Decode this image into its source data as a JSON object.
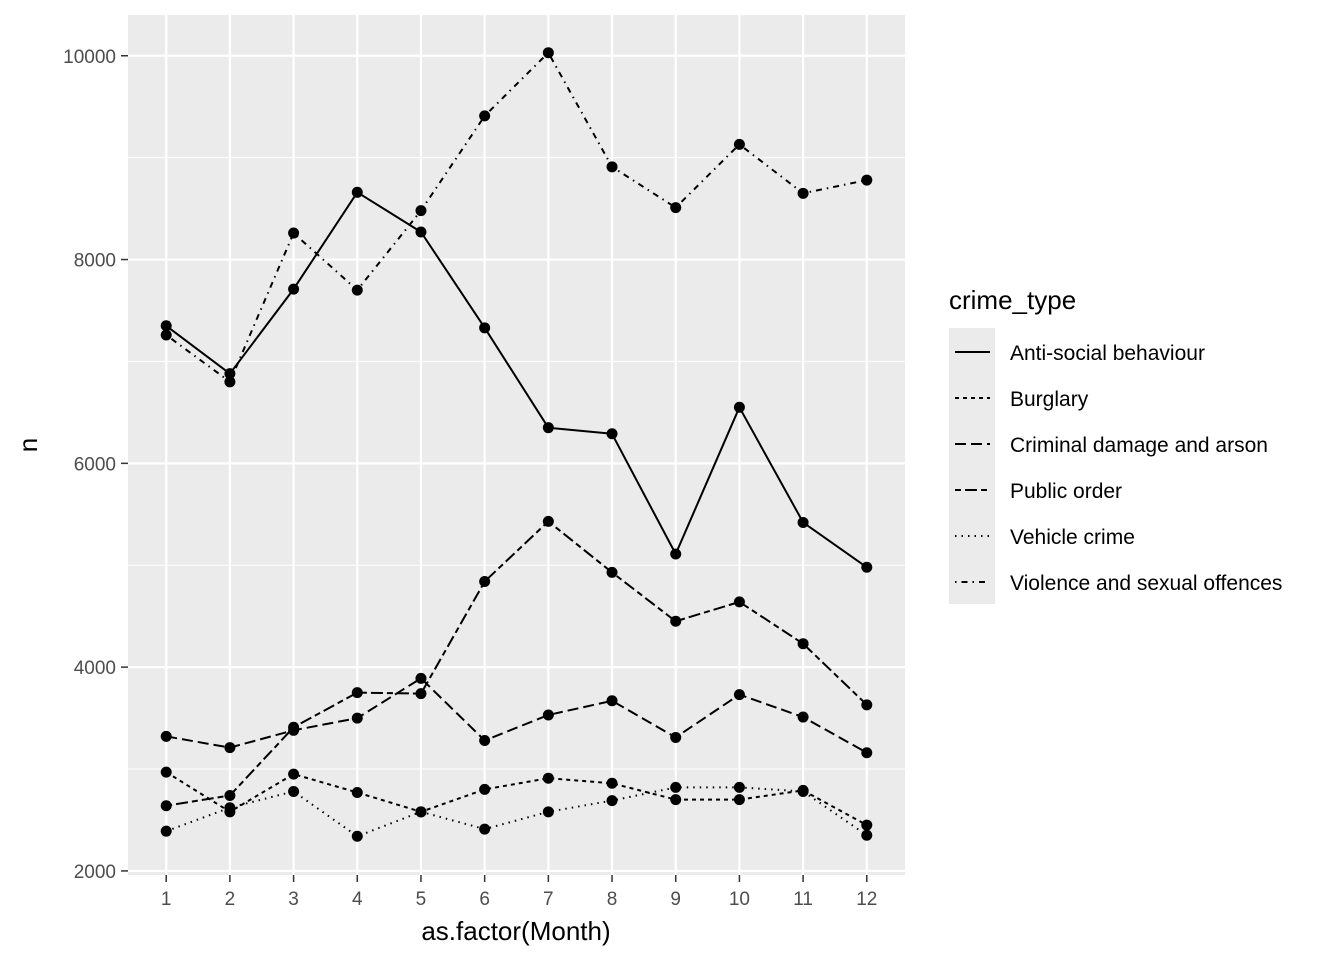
{
  "chart_data": {
    "type": "line",
    "xlabel": "as.factor(Month)",
    "ylabel": "n",
    "categories": [
      "1",
      "2",
      "3",
      "4",
      "5",
      "6",
      "7",
      "8",
      "9",
      "10",
      "11",
      "12"
    ],
    "ylim": [
      1960,
      10400
    ],
    "yticks": [
      2000,
      4000,
      6000,
      8000,
      10000
    ],
    "grid": true,
    "legend_position": "right",
    "legend_title": "crime_type",
    "series": [
      {
        "name": "Anti-social behaviour",
        "linetype": "solid",
        "values": [
          7350,
          6880,
          7710,
          8660,
          8270,
          7330,
          6350,
          6290,
          5110,
          6550,
          5420,
          4980
        ]
      },
      {
        "name": "Burglary",
        "linetype": "dashed",
        "values": [
          2970,
          2580,
          2950,
          2770,
          2580,
          2800,
          2910,
          2860,
          2700,
          2700,
          2790,
          2450
        ]
      },
      {
        "name": "Criminal damage and arson",
        "linetype": "longdash",
        "values": [
          3320,
          3210,
          3380,
          3500,
          3890,
          3280,
          3530,
          3670,
          3310,
          3730,
          3510,
          3160
        ]
      },
      {
        "name": "Public order",
        "linetype": "twodash",
        "values": [
          2640,
          2740,
          3410,
          3750,
          3740,
          4840,
          5430,
          4930,
          4450,
          4640,
          4230,
          3630
        ]
      },
      {
        "name": "Vehicle crime",
        "linetype": "dotted",
        "values": [
          2390,
          2620,
          2780,
          2340,
          2580,
          2410,
          2580,
          2690,
          2820,
          2820,
          2780,
          2350
        ]
      },
      {
        "name": "Violence and sexual offences",
        "linetype": "dotdash",
        "values": [
          7260,
          6800,
          8260,
          7700,
          8480,
          9410,
          10030,
          8910,
          8510,
          9130,
          8650,
          8780
        ]
      }
    ]
  }
}
